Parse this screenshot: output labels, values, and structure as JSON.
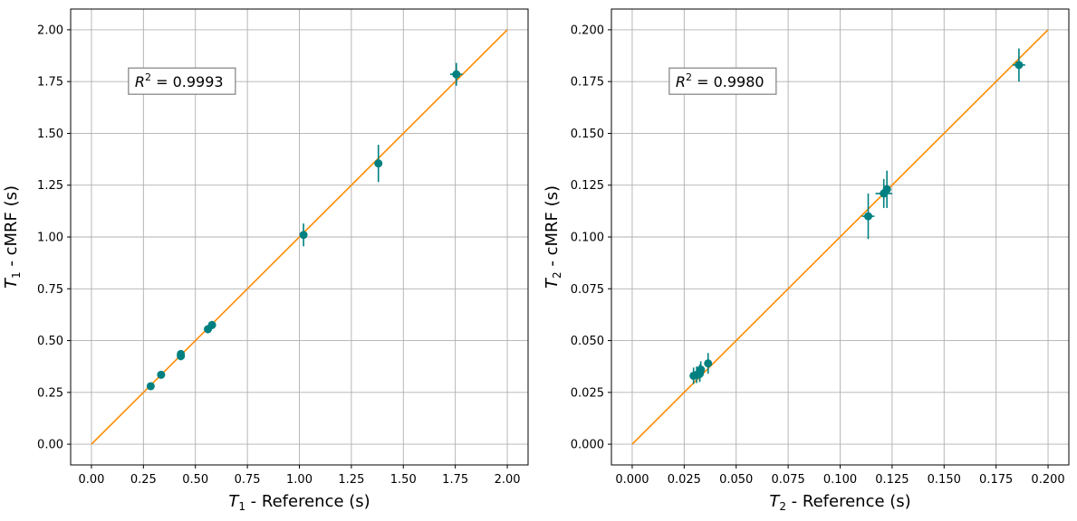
{
  "colors": {
    "fit_line": "#ff8c00",
    "points": "#008080",
    "grid": "#b0b0b0",
    "frame": "#000000",
    "annotation_border": "#808080"
  },
  "chart_data": [
    {
      "type": "scatter",
      "title": "",
      "xlabel": {
        "symbol": "T",
        "sub": "1",
        "rest": " - Reference (s)"
      },
      "ylabel": {
        "symbol": "T",
        "sub": "1",
        "rest": " - cMRF (s)"
      },
      "xlim": [
        -0.1,
        2.1
      ],
      "ylim": [
        -0.1,
        2.1
      ],
      "xticks": [
        0.0,
        0.25,
        0.5,
        0.75,
        1.0,
        1.25,
        1.5,
        1.75,
        2.0
      ],
      "yticks": [
        0.0,
        0.25,
        0.5,
        0.75,
        1.0,
        1.25,
        1.5,
        1.75,
        2.0
      ],
      "xtick_labels": [
        "0.00",
        "0.25",
        "0.50",
        "0.75",
        "1.00",
        "1.25",
        "1.50",
        "1.75",
        "2.00"
      ],
      "ytick_labels": [
        "0.00",
        "0.25",
        "0.50",
        "0.75",
        "1.00",
        "1.25",
        "1.50",
        "1.75",
        "2.00"
      ],
      "grid": true,
      "identity_line": {
        "from": [
          0,
          0
        ],
        "to": [
          2.0,
          2.0
        ]
      },
      "annotation": {
        "symbol": "R",
        "sup": "2",
        "text": " = 0.9993",
        "anchor": [
          0.2,
          1.75
        ]
      },
      "points": [
        {
          "x": 0.285,
          "y": 0.28,
          "xerr": 0.005,
          "yerr": 0.01
        },
        {
          "x": 0.335,
          "y": 0.335,
          "xerr": 0.005,
          "yerr": 0.012
        },
        {
          "x": 0.43,
          "y": 0.425,
          "xerr": 0.008,
          "yerr": 0.02
        },
        {
          "x": 0.43,
          "y": 0.435,
          "xerr": 0.008,
          "yerr": 0.015
        },
        {
          "x": 0.56,
          "y": 0.555,
          "xerr": 0.008,
          "yerr": 0.02
        },
        {
          "x": 0.58,
          "y": 0.575,
          "xerr": 0.008,
          "yerr": 0.02
        },
        {
          "x": 1.02,
          "y": 1.01,
          "xerr": 0.01,
          "yerr": 0.055
        },
        {
          "x": 1.38,
          "y": 1.355,
          "xerr": 0.01,
          "yerr": 0.09
        },
        {
          "x": 1.755,
          "y": 1.785,
          "xerr": 0.03,
          "yerr": 0.055
        }
      ]
    },
    {
      "type": "scatter",
      "title": "",
      "xlabel": {
        "symbol": "T",
        "sub": "2",
        "rest": " - Reference (s)"
      },
      "ylabel": {
        "symbol": "T",
        "sub": "2",
        "rest": " - cMRF (s)"
      },
      "xlim": [
        -0.01,
        0.21
      ],
      "ylim": [
        -0.01,
        0.21
      ],
      "xticks": [
        0.0,
        0.025,
        0.05,
        0.075,
        0.1,
        0.125,
        0.15,
        0.175,
        0.2
      ],
      "yticks": [
        0.0,
        0.025,
        0.05,
        0.075,
        0.1,
        0.125,
        0.15,
        0.175,
        0.2
      ],
      "xtick_labels": [
        "0.000",
        "0.025",
        "0.050",
        "0.075",
        "0.100",
        "0.125",
        "0.150",
        "0.175",
        "0.200"
      ],
      "ytick_labels": [
        "0.000",
        "0.025",
        "0.050",
        "0.075",
        "0.100",
        "0.125",
        "0.150",
        "0.175",
        "0.200"
      ],
      "grid": true,
      "identity_line": {
        "from": [
          0,
          0
        ],
        "to": [
          0.2,
          0.2
        ]
      },
      "annotation": {
        "symbol": "R",
        "sup": "2",
        "text": " = 0.9980",
        "anchor": [
          0.02,
          0.175
        ]
      },
      "points": [
        {
          "x": 0.0295,
          "y": 0.033,
          "xerr": 0.001,
          "yerr": 0.004
        },
        {
          "x": 0.031,
          "y": 0.0335,
          "xerr": 0.001,
          "yerr": 0.004
        },
        {
          "x": 0.0325,
          "y": 0.034,
          "xerr": 0.001,
          "yerr": 0.004
        },
        {
          "x": 0.033,
          "y": 0.036,
          "xerr": 0.001,
          "yerr": 0.004
        },
        {
          "x": 0.0325,
          "y": 0.0345,
          "xerr": 0.002,
          "yerr": 0.004
        },
        {
          "x": 0.0365,
          "y": 0.039,
          "xerr": 0.001,
          "yerr": 0.005
        },
        {
          "x": 0.1135,
          "y": 0.11,
          "xerr": 0.003,
          "yerr": 0.011
        },
        {
          "x": 0.121,
          "y": 0.121,
          "xerr": 0.004,
          "yerr": 0.007
        },
        {
          "x": 0.1225,
          "y": 0.123,
          "xerr": 0.002,
          "yerr": 0.009
        },
        {
          "x": 0.186,
          "y": 0.183,
          "xerr": 0.003,
          "yerr": 0.008
        }
      ]
    }
  ]
}
